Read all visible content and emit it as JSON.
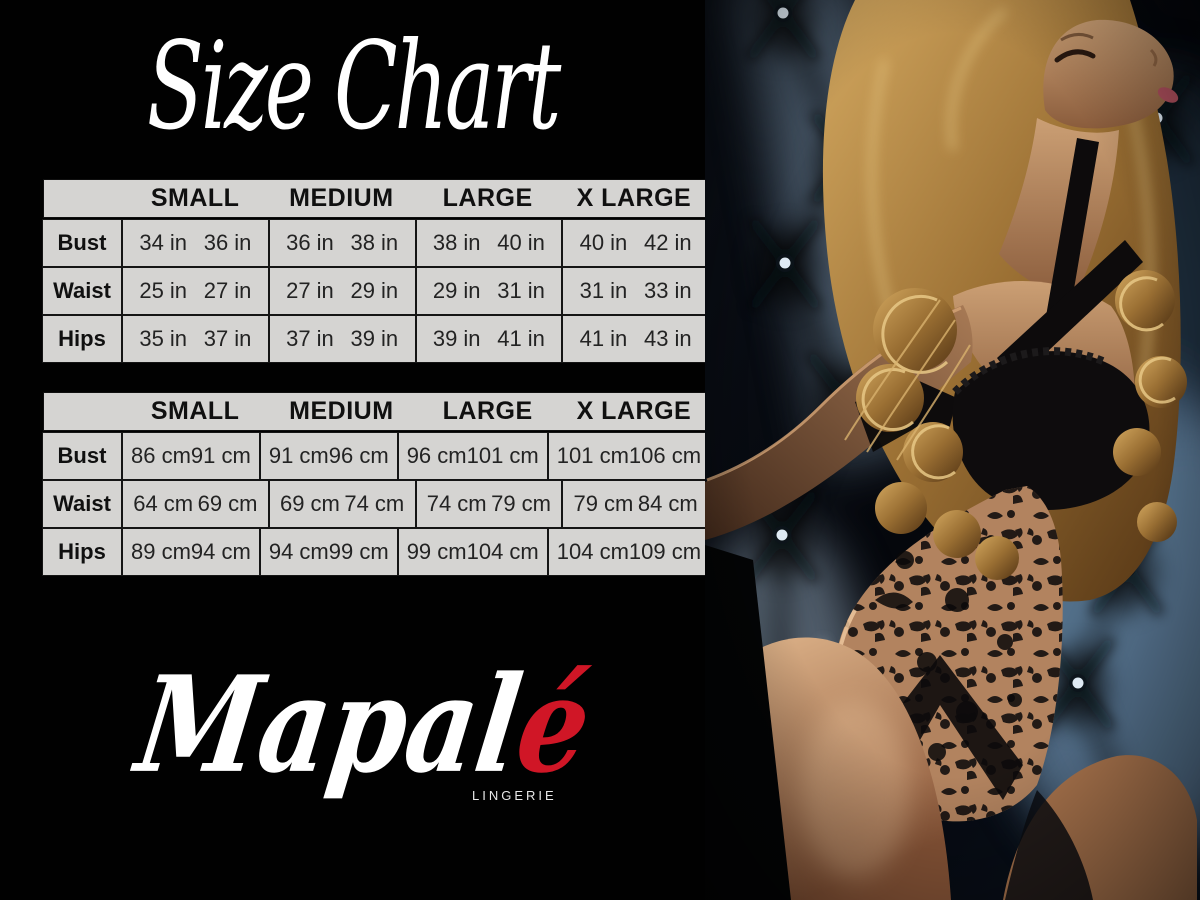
{
  "title": "Size Chart",
  "tables": [
    {
      "name": "inches",
      "columns": [
        "SMALL",
        "MEDIUM",
        "LARGE",
        "X LARGE"
      ],
      "rows": [
        {
          "label": "Bust",
          "cells": [
            [
              "34 in",
              "36 in"
            ],
            [
              "36 in",
              "38 in"
            ],
            [
              "38 in",
              "40 in"
            ],
            [
              "40 in",
              "42 in"
            ]
          ]
        },
        {
          "label": "Waist",
          "cells": [
            [
              "25 in",
              "27 in"
            ],
            [
              "27 in",
              "29 in"
            ],
            [
              "29 in",
              "31 in"
            ],
            [
              "31 in",
              "33 in"
            ]
          ]
        },
        {
          "label": "Hips",
          "cells": [
            [
              "35 in",
              "37 in"
            ],
            [
              "37 in",
              "39 in"
            ],
            [
              "39 in",
              "41 in"
            ],
            [
              "41 in",
              "43 in"
            ]
          ]
        }
      ]
    },
    {
      "name": "centimeters",
      "columns": [
        "SMALL",
        "MEDIUM",
        "LARGE",
        "X LARGE"
      ],
      "rows": [
        {
          "label": "Bust",
          "cells": [
            [
              "86 cm",
              "91 cm"
            ],
            [
              "91 cm",
              "96 cm"
            ],
            [
              "96 cm",
              "101 cm"
            ],
            [
              "101 cm",
              "106 cm"
            ]
          ]
        },
        {
          "label": "Waist",
          "cells": [
            [
              "64 cm",
              "69 cm"
            ],
            [
              "69 cm",
              "74 cm"
            ],
            [
              "74 cm",
              "79 cm"
            ],
            [
              "79 cm",
              "84 cm"
            ]
          ]
        },
        {
          "label": "Hips",
          "cells": [
            [
              "89 cm",
              "94 cm"
            ],
            [
              "94 cm",
              "99 cm"
            ],
            [
              "99 cm",
              "104 cm"
            ],
            [
              "104 cm",
              "109 cm"
            ]
          ]
        }
      ]
    }
  ],
  "brand": {
    "script_main": "Mapal",
    "script_accent": "é",
    "tagline": "LINGERIE",
    "accent_color": "#d01626"
  },
  "photo": {
    "alt": "Model with long curly blonde hair wearing a black lace bodysuit, posed against dark blue tufted upholstery"
  },
  "colors": {
    "background": "#000000",
    "table_bg": "#d5d4d2",
    "table_text": "#232323",
    "title_text": "#ffffff"
  }
}
